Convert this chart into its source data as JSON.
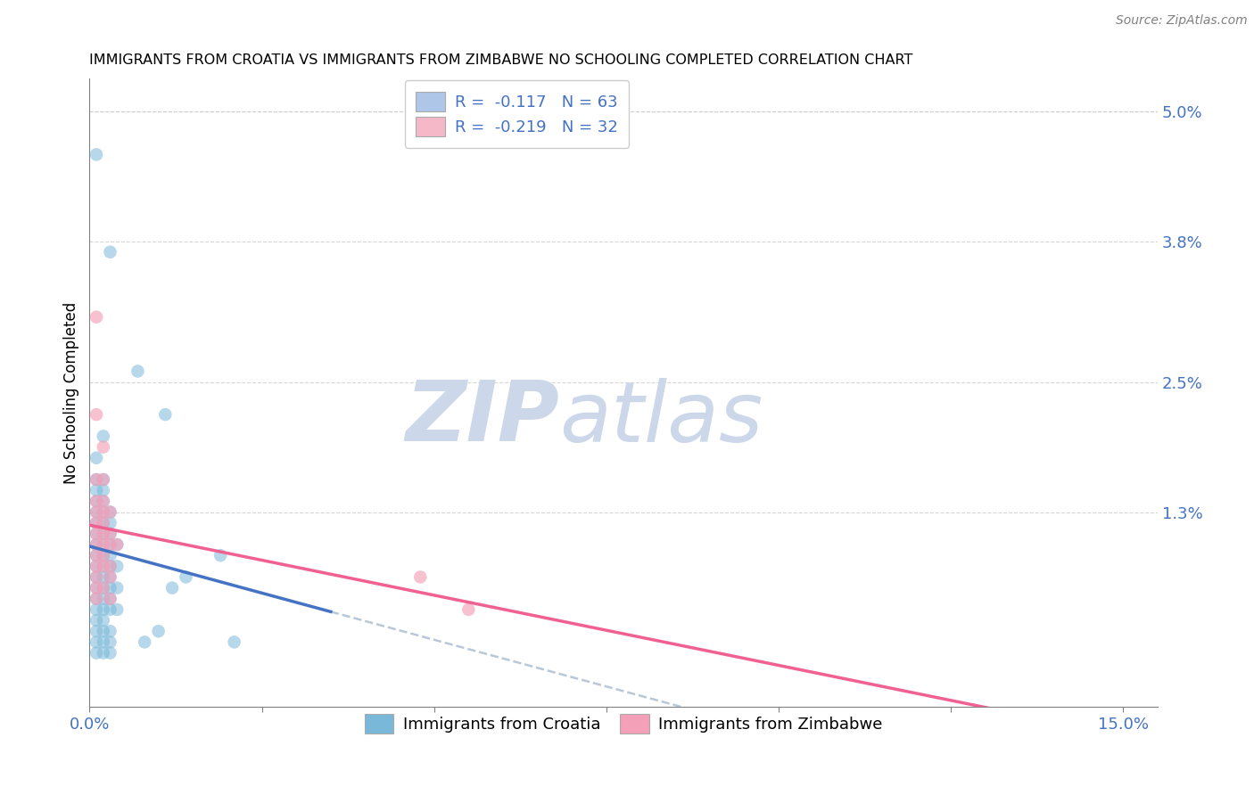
{
  "title": "IMMIGRANTS FROM CROATIA VS IMMIGRANTS FROM ZIMBABWE NO SCHOOLING COMPLETED CORRELATION CHART",
  "source": "Source: ZipAtlas.com",
  "ylabel": "No Schooling Completed",
  "xlim": [
    0.0,
    0.155
  ],
  "ylim": [
    -0.005,
    0.053
  ],
  "plot_ylim": [
    0.0,
    0.052
  ],
  "yticks_right": [
    0.013,
    0.025,
    0.038,
    0.05
  ],
  "ytick_right_labels": [
    "1.3%",
    "2.5%",
    "3.8%",
    "5.0%"
  ],
  "legend_entries": [
    {
      "label": "R =  -0.117   N = 63",
      "color": "#aec6e8"
    },
    {
      "label": "R =  -0.219   N = 32",
      "color": "#f4b8c8"
    }
  ],
  "croatia_color": "#7ab8d9",
  "zimbabwe_color": "#f4a0b8",
  "croatia_line_color": "#4472c4",
  "zimbabwe_line_color": "#f06090",
  "regression_dash_color": "#b8c8d8",
  "background_color": "#ffffff",
  "grid_color": "#cccccc",
  "croatia_points": [
    [
      0.001,
      0.046
    ],
    [
      0.003,
      0.037
    ],
    [
      0.007,
      0.026
    ],
    [
      0.011,
      0.022
    ],
    [
      0.002,
      0.02
    ],
    [
      0.001,
      0.018
    ],
    [
      0.001,
      0.016
    ],
    [
      0.002,
      0.016
    ],
    [
      0.001,
      0.015
    ],
    [
      0.002,
      0.015
    ],
    [
      0.001,
      0.014
    ],
    [
      0.002,
      0.014
    ],
    [
      0.001,
      0.013
    ],
    [
      0.002,
      0.013
    ],
    [
      0.003,
      0.013
    ],
    [
      0.001,
      0.012
    ],
    [
      0.002,
      0.012
    ],
    [
      0.003,
      0.012
    ],
    [
      0.001,
      0.011
    ],
    [
      0.002,
      0.011
    ],
    [
      0.003,
      0.011
    ],
    [
      0.001,
      0.01
    ],
    [
      0.002,
      0.01
    ],
    [
      0.003,
      0.01
    ],
    [
      0.004,
      0.01
    ],
    [
      0.001,
      0.009
    ],
    [
      0.002,
      0.009
    ],
    [
      0.003,
      0.009
    ],
    [
      0.001,
      0.008
    ],
    [
      0.002,
      0.008
    ],
    [
      0.003,
      0.008
    ],
    [
      0.004,
      0.008
    ],
    [
      0.001,
      0.007
    ],
    [
      0.002,
      0.007
    ],
    [
      0.003,
      0.007
    ],
    [
      0.001,
      0.006
    ],
    [
      0.002,
      0.006
    ],
    [
      0.003,
      0.006
    ],
    [
      0.004,
      0.006
    ],
    [
      0.001,
      0.005
    ],
    [
      0.002,
      0.005
    ],
    [
      0.003,
      0.005
    ],
    [
      0.001,
      0.004
    ],
    [
      0.002,
      0.004
    ],
    [
      0.003,
      0.004
    ],
    [
      0.004,
      0.004
    ],
    [
      0.001,
      0.003
    ],
    [
      0.002,
      0.003
    ],
    [
      0.001,
      0.002
    ],
    [
      0.002,
      0.002
    ],
    [
      0.003,
      0.002
    ],
    [
      0.001,
      0.001
    ],
    [
      0.002,
      0.001
    ],
    [
      0.003,
      0.001
    ],
    [
      0.001,
      0.0
    ],
    [
      0.002,
      0.0
    ],
    [
      0.003,
      0.0
    ],
    [
      0.012,
      0.006
    ],
    [
      0.014,
      0.007
    ],
    [
      0.019,
      0.009
    ],
    [
      0.01,
      0.002
    ],
    [
      0.008,
      0.001
    ],
    [
      0.021,
      0.001
    ]
  ],
  "zimbabwe_points": [
    [
      0.001,
      0.031
    ],
    [
      0.001,
      0.022
    ],
    [
      0.002,
      0.019
    ],
    [
      0.001,
      0.016
    ],
    [
      0.002,
      0.016
    ],
    [
      0.001,
      0.014
    ],
    [
      0.002,
      0.014
    ],
    [
      0.001,
      0.013
    ],
    [
      0.002,
      0.013
    ],
    [
      0.003,
      0.013
    ],
    [
      0.001,
      0.012
    ],
    [
      0.002,
      0.012
    ],
    [
      0.001,
      0.011
    ],
    [
      0.002,
      0.011
    ],
    [
      0.003,
      0.011
    ],
    [
      0.001,
      0.01
    ],
    [
      0.002,
      0.01
    ],
    [
      0.003,
      0.01
    ],
    [
      0.004,
      0.01
    ],
    [
      0.001,
      0.009
    ],
    [
      0.002,
      0.009
    ],
    [
      0.001,
      0.008
    ],
    [
      0.002,
      0.008
    ],
    [
      0.003,
      0.008
    ],
    [
      0.001,
      0.007
    ],
    [
      0.003,
      0.007
    ],
    [
      0.001,
      0.006
    ],
    [
      0.002,
      0.006
    ],
    [
      0.001,
      0.005
    ],
    [
      0.003,
      0.005
    ],
    [
      0.048,
      0.007
    ],
    [
      0.055,
      0.004
    ]
  ],
  "watermark_zip": "ZIP",
  "watermark_atlas": "atlas",
  "watermark_color": "#ccd8ea"
}
